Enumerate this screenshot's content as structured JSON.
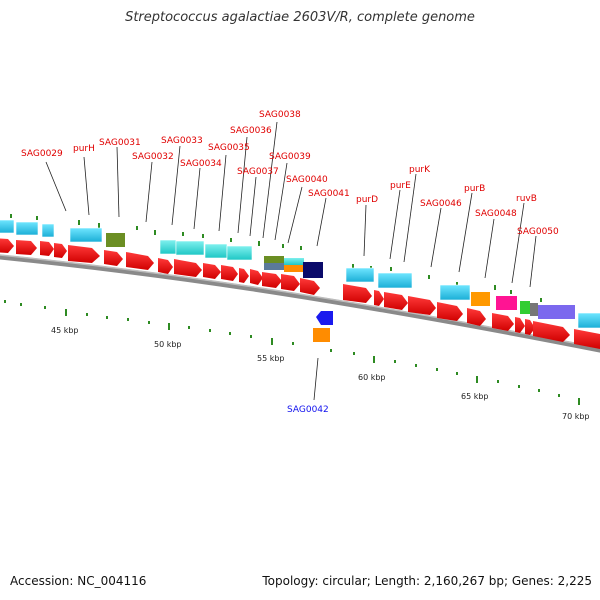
{
  "title": "Streptococcus agalactiae 2603V/R, complete genome",
  "footer": {
    "accession": "Accession: NC_004116",
    "topology": "Topology: circular; Length: 2,160,267 bp; Genes: 2,225"
  },
  "scale_labels": [
    "45 kbp",
    "50 kbp",
    "55 kbp",
    "60 kbp",
    "65 kbp",
    "70 kbp"
  ],
  "gene_labels": {
    "forward": [
      "SAG0029",
      "purH",
      "SAG0031",
      "SAG0032",
      "SAG0033",
      "SAG0034",
      "SAG0035",
      "SAG0036",
      "SAG0037",
      "SAG0038",
      "SAG0039",
      "SAG0040",
      "SAG0041",
      "purD",
      "purE",
      "purK",
      "SAG0046",
      "purB",
      "SAG0048",
      "ruvB",
      "SAG0050"
    ],
    "reverse": [
      "SAG0042"
    ]
  },
  "colors": {
    "gene_arrow": "#ff0000",
    "backbone": "#888888",
    "scale_tick": "#228b22",
    "forward_label": "#e00000",
    "reverse_label": "#1010ee"
  }
}
